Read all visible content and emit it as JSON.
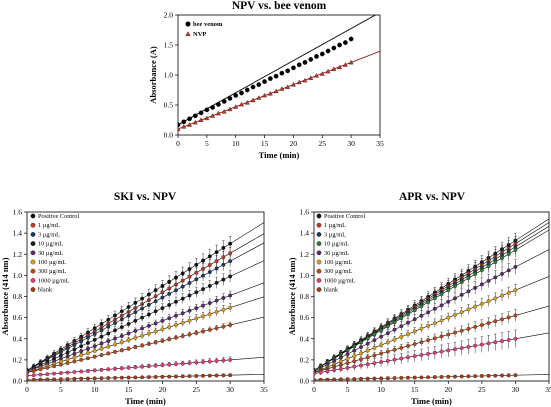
{
  "chart_data": [
    {
      "type": "scatter",
      "title": "NPV vs. bee venom",
      "xlabel": "Time (min)",
      "ylabel": "Absorbance (A)",
      "xlim": [
        0,
        35
      ],
      "ylim": [
        0,
        2
      ],
      "xticks": [
        "0",
        "5",
        "10",
        "15",
        "20",
        "25",
        "30",
        "35"
      ],
      "yticks": [
        "0.0",
        "0.5",
        "1.0",
        "1.5",
        "2.0"
      ],
      "legend": "top-left",
      "series": [
        {
          "name": "bee venom",
          "color": "#000000",
          "marker": "circle",
          "x": [
            0,
            1,
            2,
            3,
            4,
            5,
            6,
            7,
            8,
            9,
            10,
            11,
            12,
            13,
            14,
            15,
            16,
            17,
            18,
            19,
            20,
            21,
            22,
            23,
            24,
            25,
            26,
            27,
            28,
            29,
            30
          ],
          "y": [
            0.17,
            0.22,
            0.27,
            0.32,
            0.37,
            0.42,
            0.46,
            0.51,
            0.56,
            0.61,
            0.66,
            0.7,
            0.75,
            0.8,
            0.84,
            0.89,
            0.94,
            0.98,
            1.03,
            1.07,
            1.12,
            1.17,
            1.21,
            1.26,
            1.31,
            1.35,
            1.4,
            1.45,
            1.5,
            1.54,
            1.6
          ],
          "fit": [
            0.17,
            0.0535
          ]
        },
        {
          "name": "NVP",
          "color": "#c0392b",
          "marker": "triangle",
          "x": [
            0,
            1,
            2,
            3,
            4,
            5,
            6,
            7,
            8,
            9,
            10,
            11,
            12,
            13,
            14,
            15,
            16,
            17,
            18,
            19,
            20,
            21,
            22,
            23,
            24,
            25,
            26,
            27,
            28,
            29,
            30
          ],
          "y": [
            0.1,
            0.14,
            0.17,
            0.21,
            0.25,
            0.28,
            0.32,
            0.36,
            0.39,
            0.43,
            0.47,
            0.51,
            0.54,
            0.58,
            0.62,
            0.66,
            0.69,
            0.73,
            0.77,
            0.8,
            0.84,
            0.88,
            0.91,
            0.95,
            0.99,
            1.02,
            1.06,
            1.1,
            1.13,
            1.17,
            1.21
          ],
          "fit": [
            0.1,
            0.037
          ]
        }
      ]
    },
    {
      "type": "scatter",
      "title": "SKI vs. NPV",
      "xlabel": "Time (min)",
      "ylabel": "Absorbance (414 nm)",
      "xlim": [
        0,
        35
      ],
      "ylim": [
        0,
        1.6
      ],
      "xticks": [
        "0",
        "5",
        "10",
        "15",
        "20",
        "25",
        "30",
        "35"
      ],
      "yticks": [
        "0.0",
        "0.2",
        "0.4",
        "0.6",
        "0.8",
        "1.0",
        "1.2",
        "1.4",
        "1.6"
      ],
      "legend": "top-left",
      "x": [
        0,
        1,
        2,
        3,
        4,
        5,
        6,
        7,
        8,
        9,
        10,
        11,
        12,
        13,
        14,
        15,
        16,
        17,
        18,
        19,
        20,
        21,
        22,
        23,
        24,
        25,
        26,
        27,
        28,
        29,
        30
      ],
      "series": [
        {
          "name": "Positive Control",
          "color": "#111111",
          "intercept": 0.1,
          "slope": 0.04,
          "err": 0.05
        },
        {
          "name": "1 µg/mL",
          "color": "#c0392b",
          "intercept": 0.1,
          "slope": 0.037,
          "err": 0.04
        },
        {
          "name": "3 µg/mL",
          "color": "#1f3a5f",
          "intercept": 0.1,
          "slope": 0.0345,
          "err": 0.04
        },
        {
          "name": "10 µg/mL",
          "color": "#1a1a1a",
          "intercept": 0.09,
          "slope": 0.03,
          "err": 0.04
        },
        {
          "name": "30 µg/mL",
          "color": "#5b2a6e",
          "intercept": 0.09,
          "slope": 0.024,
          "err": 0.03
        },
        {
          "name": "100 µg/mL",
          "color": "#d4a017",
          "intercept": 0.08,
          "slope": 0.0205,
          "err": 0.03
        },
        {
          "name": "300 µg/mL",
          "color": "#b84a1a",
          "intercept": 0.08,
          "slope": 0.015,
          "err": 0.02
        },
        {
          "name": "1000 µg/mL",
          "color": "#e0407a",
          "intercept": 0.05,
          "slope": 0.005,
          "err": 0.02
        },
        {
          "name": "blank",
          "color": "#a0401a",
          "intercept": 0.01,
          "slope": 0.0015,
          "err": 0.01
        }
      ]
    },
    {
      "type": "scatter",
      "title": "APR vs. NPV",
      "xlabel": "Time (min)",
      "ylabel": "Absorbance (414 nm)",
      "xlim": [
        0,
        35
      ],
      "ylim": [
        0,
        1.6
      ],
      "xticks": [
        "0",
        "5",
        "10",
        "15",
        "20",
        "25",
        "30",
        "35"
      ],
      "yticks": [
        "0.0",
        "0.2",
        "0.4",
        "0.6",
        "0.8",
        "1.0",
        "1.2",
        "1.4",
        "1.6"
      ],
      "legend": "top-left",
      "x": [
        0,
        1,
        2,
        3,
        4,
        5,
        6,
        7,
        8,
        9,
        10,
        11,
        12,
        13,
        14,
        15,
        16,
        17,
        18,
        19,
        20,
        21,
        22,
        23,
        24,
        25,
        26,
        27,
        28,
        29,
        30
      ],
      "series": [
        {
          "name": "Positive Control",
          "color": "#111111",
          "intercept": 0.1,
          "slope": 0.041,
          "err": 0.05
        },
        {
          "name": "1 µg/mL",
          "color": "#c0392b",
          "intercept": 0.1,
          "slope": 0.04,
          "err": 0.05
        },
        {
          "name": "3 µg/mL",
          "color": "#1f3a5f",
          "intercept": 0.1,
          "slope": 0.039,
          "err": 0.05
        },
        {
          "name": "10 µg/mL",
          "color": "#2e7d32",
          "intercept": 0.1,
          "slope": 0.038,
          "err": 0.05
        },
        {
          "name": "30 µg/mL",
          "color": "#5b2a6e",
          "intercept": 0.09,
          "slope": 0.033,
          "err": 0.05
        },
        {
          "name": "100 µg/mL",
          "color": "#d4a017",
          "intercept": 0.08,
          "slope": 0.026,
          "err": 0.04
        },
        {
          "name": "300 µg/mL",
          "color": "#b84a1a",
          "intercept": 0.08,
          "slope": 0.018,
          "err": 0.04
        },
        {
          "name": "1000 µg/mL",
          "color": "#e0407a",
          "intercept": 0.07,
          "slope": 0.011,
          "err": 0.06
        },
        {
          "name": "blank",
          "color": "#a0401a",
          "intercept": 0.01,
          "slope": 0.0015,
          "err": 0.01
        }
      ]
    }
  ]
}
